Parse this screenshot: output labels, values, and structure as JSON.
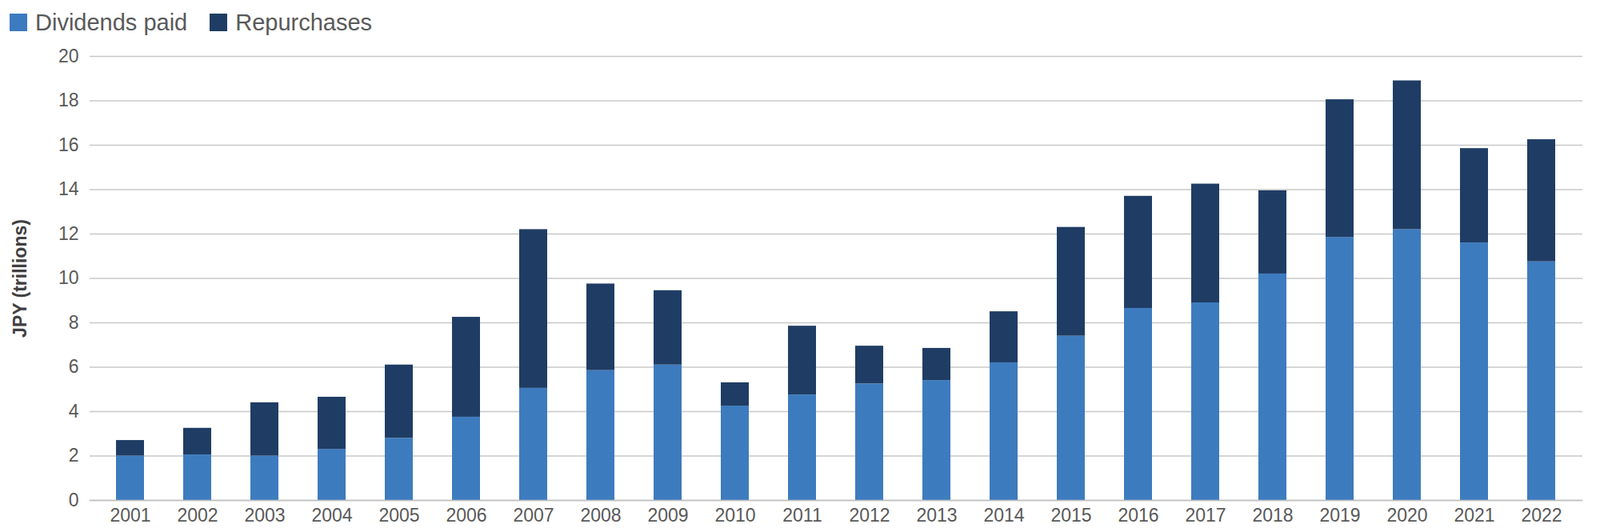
{
  "chart_data": {
    "type": "bar",
    "stacked": true,
    "grid": true,
    "legend": "top-left",
    "y_label": "JPY (trillions)",
    "categories": [
      "2001",
      "2002",
      "2003",
      "2004",
      "2005",
      "2006",
      "2007",
      "2008",
      "2009",
      "2010",
      "2011",
      "2012",
      "2013",
      "2014",
      "2015",
      "2016",
      "2017",
      "2018",
      "2019",
      "2020",
      "2021",
      "2022"
    ],
    "series": [
      {
        "name": "Dividends paid",
        "color": "#3d7bbf",
        "values": [
          2.0,
          2.05,
          2.0,
          2.3,
          2.8,
          3.75,
          5.05,
          5.85,
          6.1,
          4.25,
          4.75,
          5.25,
          5.4,
          6.2,
          7.4,
          8.65,
          8.9,
          10.2,
          11.85,
          12.2,
          11.6,
          10.75
        ]
      },
      {
        "name": "Repurchases",
        "color": "#1f3d64",
        "values": [
          0.7,
          1.2,
          2.4,
          2.35,
          3.3,
          4.5,
          7.15,
          3.9,
          3.35,
          1.05,
          3.1,
          1.7,
          1.45,
          2.3,
          4.9,
          5.05,
          5.35,
          3.75,
          6.2,
          6.7,
          4.25,
          5.5
        ]
      }
    ],
    "ylim": [
      0,
      20
    ],
    "yticks": [
      0,
      2,
      4,
      6,
      8,
      10,
      12,
      14,
      16,
      18,
      20
    ]
  }
}
